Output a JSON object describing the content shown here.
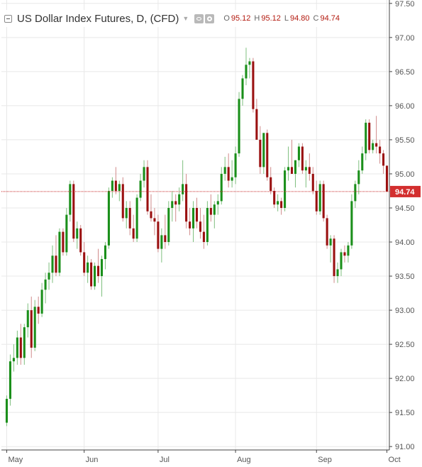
{
  "legend": {
    "title": "US Dollar Index Futures, D, (CFD)",
    "ohlc": [
      {
        "key": "O",
        "value": "95.12"
      },
      {
        "key": "H",
        "value": "95.12"
      },
      {
        "key": "L",
        "value": "94.80"
      },
      {
        "key": "C",
        "value": "94.74"
      }
    ]
  },
  "colors": {
    "up": "#1a8f1a",
    "down": "#9a1010",
    "wick_up": "#7ebf7e",
    "wick_down": "#d08a8a",
    "price_line": "#c62828",
    "price_tag": "#d32f2f",
    "grid": "#e8e8e8",
    "axis": "#444444",
    "label": "#555555"
  },
  "chart_data": {
    "type": "candlestick",
    "y_range": [
      90.95,
      97.55
    ],
    "y_ticks": [
      "91.00",
      "91.50",
      "92.00",
      "92.50",
      "93.00",
      "93.50",
      "94.00",
      "94.50",
      "95.00",
      "95.50",
      "96.00",
      "96.50",
      "97.00",
      "97.50"
    ],
    "x_labels": [
      {
        "label": "May",
        "index": 0
      },
      {
        "label": "Jun",
        "index": 22
      },
      {
        "label": "Jul",
        "index": 43
      },
      {
        "label": "Aug",
        "index": 65
      },
      {
        "label": "Sep",
        "index": 88
      },
      {
        "label": "Oct",
        "index": 108
      }
    ],
    "last_price": "94.74",
    "candles": [
      [
        91.35,
        91.75,
        91.3,
        91.7
      ],
      [
        91.7,
        92.35,
        91.6,
        92.25
      ],
      [
        92.25,
        92.5,
        92.1,
        92.3
      ],
      [
        92.3,
        92.7,
        92.2,
        92.6
      ],
      [
        92.6,
        92.8,
        92.2,
        92.3
      ],
      [
        92.3,
        92.8,
        92.2,
        92.75
      ],
      [
        92.75,
        93.1,
        92.6,
        93.0
      ],
      [
        93.0,
        93.2,
        92.3,
        92.45
      ],
      [
        92.45,
        93.15,
        92.4,
        93.05
      ],
      [
        93.05,
        93.2,
        92.8,
        92.95
      ],
      [
        92.95,
        93.4,
        92.9,
        93.3
      ],
      [
        93.3,
        93.55,
        93.1,
        93.45
      ],
      [
        93.45,
        93.7,
        93.3,
        93.55
      ],
      [
        93.55,
        93.95,
        93.4,
        93.8
      ],
      [
        93.8,
        94.1,
        93.5,
        93.55
      ],
      [
        93.55,
        94.2,
        93.5,
        94.15
      ],
      [
        94.15,
        94.2,
        93.8,
        93.85
      ],
      [
        93.85,
        94.5,
        93.8,
        94.4
      ],
      [
        94.4,
        94.9,
        94.3,
        94.85
      ],
      [
        94.85,
        94.9,
        94.0,
        94.05
      ],
      [
        94.05,
        94.3,
        93.9,
        94.2
      ],
      [
        94.2,
        94.25,
        93.8,
        93.85
      ],
      [
        93.85,
        94.0,
        93.5,
        93.55
      ],
      [
        93.55,
        93.8,
        93.4,
        93.7
      ],
      [
        93.7,
        93.75,
        93.3,
        93.35
      ],
      [
        93.35,
        93.7,
        93.3,
        93.65
      ],
      [
        93.65,
        93.9,
        93.4,
        93.5
      ],
      [
        93.5,
        93.8,
        93.2,
        93.75
      ],
      [
        93.75,
        94.0,
        93.6,
        93.95
      ],
      [
        93.95,
        94.8,
        93.9,
        94.75
      ],
      [
        94.75,
        94.95,
        94.65,
        94.9
      ],
      [
        94.9,
        95.1,
        94.7,
        94.75
      ],
      [
        94.75,
        94.9,
        94.6,
        94.85
      ],
      [
        94.85,
        94.95,
        94.3,
        94.35
      ],
      [
        94.35,
        94.6,
        94.2,
        94.5
      ],
      [
        94.5,
        94.6,
        94.1,
        94.2
      ],
      [
        94.2,
        94.4,
        94.0,
        94.05
      ],
      [
        94.05,
        94.7,
        94.0,
        94.65
      ],
      [
        94.65,
        95.0,
        94.6,
        94.9
      ],
      [
        94.9,
        95.2,
        94.8,
        95.1
      ],
      [
        95.1,
        95.2,
        94.4,
        94.45
      ],
      [
        94.45,
        94.7,
        94.3,
        94.35
      ],
      [
        94.35,
        94.5,
        94.1,
        94.3
      ],
      [
        94.3,
        94.4,
        93.85,
        93.9
      ],
      [
        93.9,
        94.2,
        93.7,
        94.1
      ],
      [
        94.1,
        94.4,
        93.9,
        94.0
      ],
      [
        94.0,
        94.6,
        93.95,
        94.5
      ],
      [
        94.5,
        94.75,
        94.3,
        94.6
      ],
      [
        94.6,
        94.7,
        94.3,
        94.55
      ],
      [
        94.55,
        94.8,
        94.45,
        94.7
      ],
      [
        94.7,
        95.2,
        94.6,
        94.85
      ],
      [
        94.85,
        95.0,
        94.2,
        94.3
      ],
      [
        94.3,
        94.5,
        94.1,
        94.2
      ],
      [
        94.2,
        94.6,
        94.0,
        94.5
      ],
      [
        94.5,
        94.65,
        94.2,
        94.3
      ],
      [
        94.3,
        94.5,
        94.05,
        94.15
      ],
      [
        94.15,
        94.4,
        93.9,
        94.0
      ],
      [
        94.0,
        94.6,
        93.95,
        94.5
      ],
      [
        94.5,
        94.7,
        94.3,
        94.4
      ],
      [
        94.4,
        94.6,
        94.2,
        94.55
      ],
      [
        94.55,
        94.7,
        94.4,
        94.6
      ],
      [
        94.6,
        95.1,
        94.55,
        95.0
      ],
      [
        95.0,
        95.25,
        94.9,
        95.1
      ],
      [
        95.1,
        95.3,
        94.8,
        94.9
      ],
      [
        94.9,
        95.2,
        94.8,
        94.95
      ],
      [
        94.95,
        95.4,
        94.85,
        95.3
      ],
      [
        95.3,
        96.2,
        95.25,
        96.1
      ],
      [
        96.1,
        96.45,
        96.0,
        96.4
      ],
      [
        96.4,
        96.85,
        96.3,
        96.6
      ],
      [
        96.6,
        96.7,
        96.4,
        96.65
      ],
      [
        96.65,
        96.7,
        95.9,
        95.95
      ],
      [
        95.95,
        96.1,
        95.5,
        95.5
      ],
      [
        95.5,
        95.7,
        95.0,
        95.1
      ],
      [
        95.1,
        95.6,
        95.0,
        95.6
      ],
      [
        95.6,
        95.65,
        94.9,
        94.95
      ],
      [
        94.95,
        95.1,
        94.7,
        94.75
      ],
      [
        94.75,
        94.8,
        94.5,
        94.55
      ],
      [
        94.55,
        94.7,
        94.45,
        94.6
      ],
      [
        94.6,
        94.65,
        94.4,
        94.5
      ],
      [
        94.5,
        95.1,
        94.45,
        95.05
      ],
      [
        95.05,
        95.4,
        94.9,
        95.1
      ],
      [
        95.1,
        95.5,
        95.0,
        95.0
      ],
      [
        95.0,
        95.2,
        94.8,
        95.2
      ],
      [
        95.2,
        95.45,
        95.1,
        95.4
      ],
      [
        95.4,
        95.45,
        95.0,
        95.05
      ],
      [
        95.05,
        95.2,
        94.8,
        95.1
      ],
      [
        95.1,
        95.3,
        94.9,
        95.0
      ],
      [
        95.0,
        95.1,
        94.7,
        94.75
      ],
      [
        94.75,
        94.9,
        94.4,
        94.45
      ],
      [
        94.45,
        94.9,
        94.4,
        94.85
      ],
      [
        94.85,
        94.9,
        94.3,
        94.35
      ],
      [
        94.35,
        94.4,
        93.9,
        93.95
      ],
      [
        93.95,
        94.1,
        93.7,
        94.05
      ],
      [
        94.05,
        94.1,
        93.4,
        93.5
      ],
      [
        93.5,
        93.7,
        93.4,
        93.6
      ],
      [
        93.6,
        93.9,
        93.5,
        93.85
      ],
      [
        93.85,
        93.95,
        93.7,
        93.8
      ],
      [
        93.8,
        94.0,
        93.7,
        93.95
      ],
      [
        93.95,
        94.7,
        93.9,
        94.6
      ],
      [
        94.6,
        94.9,
        94.5,
        94.85
      ],
      [
        94.85,
        95.2,
        94.7,
        95.05
      ],
      [
        95.05,
        95.4,
        95.0,
        95.3
      ],
      [
        95.3,
        95.8,
        95.2,
        95.75
      ],
      [
        95.75,
        95.8,
        95.3,
        95.35
      ],
      [
        95.35,
        95.5,
        95.3,
        95.45
      ],
      [
        95.45,
        95.85,
        95.3,
        95.4
      ],
      [
        95.4,
        95.5,
        95.15,
        95.3
      ],
      [
        95.3,
        95.35,
        95.0,
        95.12
      ],
      [
        95.12,
        95.12,
        94.8,
        94.74
      ]
    ]
  }
}
